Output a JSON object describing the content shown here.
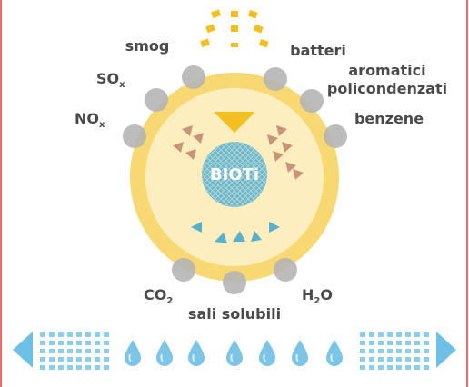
{
  "labels": {
    "smog": "smog",
    "batteri": "batteri",
    "sox": {
      "main": "SO",
      "sub": "x"
    },
    "aromatici": [
      "aromatici",
      "policondenzati"
    ],
    "nox": {
      "main": "NO",
      "sub": "x"
    },
    "benzene": "benzene",
    "biot": "BIOTi",
    "co2": {
      "main": "CO",
      "sub": "2"
    },
    "sali": "sali solubili",
    "h2o": {
      "main": "H",
      "sub": "2",
      "end": "O"
    }
  }
}
